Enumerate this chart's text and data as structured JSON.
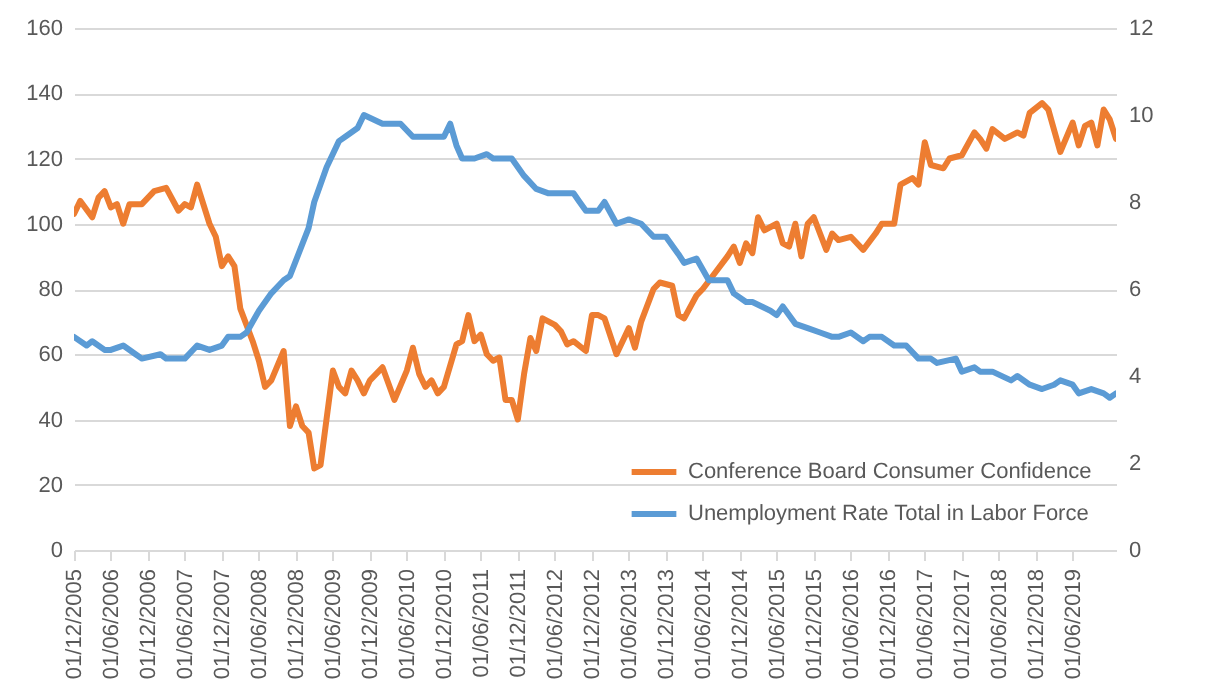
{
  "chart_data": {
    "type": "line",
    "series": [
      {
        "name": "Conference Board Consumer Confidence",
        "color": "#ed7d31",
        "x": [
          "2005-12",
          "2006-01",
          "2006-03",
          "2006-04",
          "2006-05",
          "2006-06",
          "2006-07",
          "2006-08",
          "2006-09",
          "2006-11",
          "2007-01",
          "2007-03",
          "2007-05",
          "2007-06",
          "2007-07",
          "2007-08",
          "2007-10",
          "2007-11",
          "2007-12",
          "2008-01",
          "2008-02",
          "2008-03",
          "2008-05",
          "2008-06",
          "2008-07",
          "2008-08",
          "2008-10",
          "2008-11",
          "2008-12",
          "2009-01",
          "2009-02",
          "2009-03",
          "2009-04",
          "2009-06",
          "2009-07",
          "2009-08",
          "2009-09",
          "2009-10",
          "2009-11",
          "2009-12",
          "2010-02",
          "2010-04",
          "2010-06",
          "2010-07",
          "2010-08",
          "2010-09",
          "2010-10",
          "2010-11",
          "2010-12",
          "2011-02",
          "2011-03",
          "2011-04",
          "2011-05",
          "2011-06",
          "2011-07",
          "2011-08",
          "2011-09",
          "2011-10",
          "2011-11",
          "2011-12",
          "2012-01",
          "2012-02",
          "2012-03",
          "2012-04",
          "2012-06",
          "2012-07",
          "2012-08",
          "2012-09",
          "2012-11",
          "2012-12",
          "2013-01",
          "2013-02",
          "2013-04",
          "2013-06",
          "2013-07",
          "2013-08",
          "2013-10",
          "2013-11",
          "2014-01",
          "2014-02",
          "2014-03",
          "2014-05",
          "2014-06",
          "2014-08",
          "2014-10",
          "2014-11",
          "2014-12",
          "2015-01",
          "2015-02",
          "2015-03",
          "2015-04",
          "2015-06",
          "2015-07",
          "2015-08",
          "2015-09",
          "2015-10",
          "2015-11",
          "2015-12",
          "2016-02",
          "2016-03",
          "2016-04",
          "2016-06",
          "2016-08",
          "2016-10",
          "2016-11",
          "2017-01",
          "2017-02",
          "2017-04",
          "2017-05",
          "2017-06",
          "2017-07",
          "2017-09",
          "2017-10",
          "2017-12",
          "2018-02",
          "2018-03",
          "2018-04",
          "2018-05",
          "2018-07",
          "2018-09",
          "2018-10",
          "2018-11",
          "2019-01",
          "2019-02",
          "2019-04",
          "2019-06",
          "2019-07",
          "2019-08",
          "2019-09",
          "2019-10",
          "2019-11",
          "2019-12",
          "2020-01"
        ],
        "values": [
          103,
          107,
          102,
          108,
          110,
          105,
          106,
          100,
          106,
          106,
          110,
          111,
          104,
          106,
          105,
          112,
          100,
          96,
          87,
          90,
          87,
          74,
          64,
          58,
          50,
          52,
          61,
          38,
          44,
          38,
          36,
          25,
          26,
          55,
          50,
          48,
          55,
          52,
          48,
          52,
          56,
          46,
          55,
          62,
          54,
          50,
          52,
          48,
          50,
          63,
          64,
          72,
          64,
          66,
          60,
          58,
          59,
          46,
          46,
          40,
          54,
          65,
          61,
          71,
          69,
          67,
          63,
          64,
          61,
          72,
          72,
          71,
          60,
          68,
          62,
          70,
          80,
          82,
          81,
          72,
          71,
          78,
          80,
          85,
          90,
          93,
          88,
          94,
          91,
          102,
          98,
          100,
          94,
          93,
          100,
          90,
          100,
          102,
          92,
          97,
          95,
          96,
          92,
          97,
          100,
          100,
          112,
          114,
          112,
          125,
          118,
          117,
          120,
          121,
          128,
          126,
          123,
          129,
          126,
          128,
          127,
          134,
          137,
          135,
          122,
          131,
          124,
          130,
          131,
          124,
          135,
          132,
          126
        ]
      },
      {
        "name": "Unemployment Rate Total in Labor Force",
        "color": "#5b9bd5",
        "axis": "y2",
        "x": [
          "2005-12",
          "2006-02",
          "2006-03",
          "2006-05",
          "2006-06",
          "2006-08",
          "2006-10",
          "2006-11",
          "2007-02",
          "2007-03",
          "2007-06",
          "2007-08",
          "2007-10",
          "2007-12",
          "2008-01",
          "2008-03",
          "2008-04",
          "2008-06",
          "2008-08",
          "2008-10",
          "2008-11",
          "2009-02",
          "2009-03",
          "2009-05",
          "2009-07",
          "2009-08",
          "2009-10",
          "2009-11",
          "2010-02",
          "2010-03",
          "2010-05",
          "2010-07",
          "2010-09",
          "2010-10",
          "2010-12",
          "2011-01",
          "2011-02",
          "2011-03",
          "2011-05",
          "2011-07",
          "2011-08",
          "2011-11",
          "2012-01",
          "2012-03",
          "2012-05",
          "2012-07",
          "2012-09",
          "2012-10",
          "2012-11",
          "2013-01",
          "2013-02",
          "2013-04",
          "2013-06",
          "2013-08",
          "2013-10",
          "2013-12",
          "2014-02",
          "2014-03",
          "2014-05",
          "2014-07",
          "2014-08",
          "2014-10",
          "2014-11",
          "2015-01",
          "2015-02",
          "2015-05",
          "2015-06",
          "2015-07",
          "2015-09",
          "2015-11",
          "2016-01",
          "2016-03",
          "2016-04",
          "2016-06",
          "2016-08",
          "2016-09",
          "2016-11",
          "2017-01",
          "2017-03",
          "2017-05",
          "2017-07",
          "2017-08",
          "2017-11",
          "2017-12",
          "2018-02",
          "2018-03",
          "2018-05",
          "2018-08",
          "2018-09",
          "2018-11",
          "2019-01",
          "2019-03",
          "2019-04",
          "2019-06",
          "2019-07",
          "2019-09",
          "2019-11",
          "2019-12",
          "2020-01"
        ],
        "values": [
          4.9,
          4.7,
          4.8,
          4.6,
          4.6,
          4.7,
          4.5,
          4.4,
          4.5,
          4.4,
          4.4,
          4.7,
          4.6,
          4.7,
          4.9,
          4.9,
          5.0,
          5.5,
          5.9,
          6.2,
          6.3,
          7.4,
          8.0,
          8.8,
          9.4,
          9.5,
          9.7,
          10.0,
          9.8,
          9.8,
          9.8,
          9.5,
          9.5,
          9.5,
          9.5,
          9.8,
          9.3,
          9.0,
          9.0,
          9.1,
          9.0,
          9.0,
          8.6,
          8.3,
          8.2,
          8.2,
          8.2,
          8.0,
          7.8,
          7.8,
          8.0,
          7.5,
          7.6,
          7.5,
          7.2,
          7.2,
          6.8,
          6.6,
          6.7,
          6.2,
          6.2,
          6.2,
          5.9,
          5.7,
          5.7,
          5.5,
          5.4,
          5.6,
          5.2,
          5.1,
          5.0,
          4.9,
          4.9,
          5.0,
          4.8,
          4.9,
          4.9,
          4.7,
          4.7,
          4.4,
          4.4,
          4.3,
          4.4,
          4.1,
          4.2,
          4.1,
          4.1,
          3.9,
          4.0,
          3.8,
          3.7,
          3.8,
          3.9,
          3.8,
          3.6,
          3.7,
          3.6,
          3.5,
          3.6
        ]
      }
    ],
    "xlim": [
      "2005-12",
      "2020-01"
    ],
    "xticks": [
      {
        "value": "2005-12",
        "label": "01/12/2005"
      },
      {
        "value": "2006-06",
        "label": "01/06/2006"
      },
      {
        "value": "2006-12",
        "label": "01/12/2006"
      },
      {
        "value": "2007-06",
        "label": "01/06/2007"
      },
      {
        "value": "2007-12",
        "label": "01/12/2007"
      },
      {
        "value": "2008-06",
        "label": "01/06/2008"
      },
      {
        "value": "2008-12",
        "label": "01/12/2008"
      },
      {
        "value": "2009-06",
        "label": "01/06/2009"
      },
      {
        "value": "2009-12",
        "label": "01/12/2009"
      },
      {
        "value": "2010-06",
        "label": "01/06/2010"
      },
      {
        "value": "2010-12",
        "label": "01/12/2010"
      },
      {
        "value": "2011-06",
        "label": "01/06/2011"
      },
      {
        "value": "2011-12",
        "label": "01/12/2011"
      },
      {
        "value": "2012-06",
        "label": "01/06/2012"
      },
      {
        "value": "2012-12",
        "label": "01/12/2012"
      },
      {
        "value": "2013-06",
        "label": "01/06/2013"
      },
      {
        "value": "2013-12",
        "label": "01/12/2013"
      },
      {
        "value": "2014-06",
        "label": "01/06/2014"
      },
      {
        "value": "2014-12",
        "label": "01/12/2014"
      },
      {
        "value": "2015-06",
        "label": "01/06/2015"
      },
      {
        "value": "2015-12",
        "label": "01/12/2015"
      },
      {
        "value": "2016-06",
        "label": "01/06/2016"
      },
      {
        "value": "2016-12",
        "label": "01/12/2016"
      },
      {
        "value": "2017-06",
        "label": "01/06/2017"
      },
      {
        "value": "2017-12",
        "label": "01/12/2017"
      },
      {
        "value": "2018-06",
        "label": "01/06/2018"
      },
      {
        "value": "2018-12",
        "label": "01/12/2018"
      },
      {
        "value": "2019-06",
        "label": "01/06/2019"
      }
    ],
    "ylim": [
      0,
      160
    ],
    "yticks": [
      0,
      20,
      40,
      60,
      80,
      100,
      120,
      140,
      160
    ],
    "y2lim": [
      0,
      12
    ],
    "y2ticks": [
      0,
      2,
      4,
      6,
      8,
      10,
      12
    ],
    "grid": "y",
    "legend": "bottom right",
    "line_style": "solid",
    "marker": "none"
  }
}
